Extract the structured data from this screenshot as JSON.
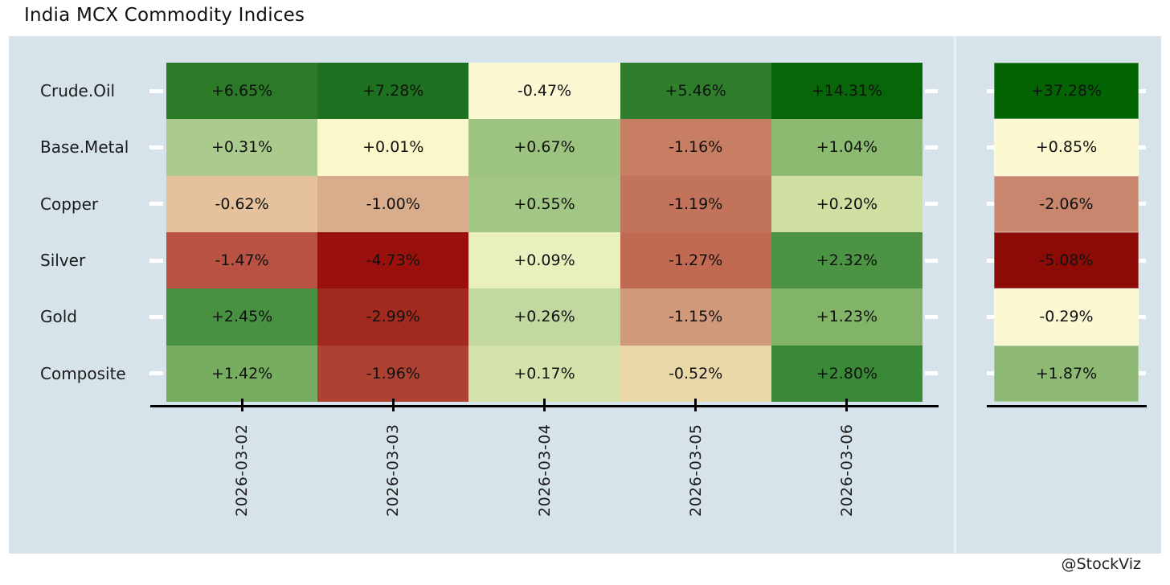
{
  "page": {
    "title": "India MCX Commodity Indices",
    "footer": "@StockViz",
    "colors": {
      "panel_bg": "#d6e3ea",
      "axis": "#000000",
      "axis_tick_marks": "#ffffff",
      "text": "#1a1a1a"
    }
  },
  "chart_data": {
    "type": "heatmap",
    "title": "India MCX Commodity Indices",
    "rows": [
      "Crude.Oil",
      "Base.Metal",
      "Copper",
      "Silver",
      "Gold",
      "Composite"
    ],
    "columns": [
      "2026-03-02",
      "2026-03-03",
      "2026-03-04",
      "2026-03-05",
      "2026-03-06"
    ],
    "values": [
      [
        6.65,
        7.28,
        -0.47,
        5.46,
        14.31
      ],
      [
        0.31,
        0.01,
        0.67,
        -1.16,
        1.04
      ],
      [
        -0.62,
        -1.0,
        0.55,
        -1.19,
        0.2
      ],
      [
        -1.47,
        -4.73,
        0.09,
        -1.27,
        2.32
      ],
      [
        2.45,
        -2.99,
        0.26,
        -1.15,
        1.23
      ],
      [
        1.42,
        -1.96,
        0.17,
        -0.52,
        2.8
      ]
    ],
    "labels": [
      [
        "+6.65%",
        "+7.28%",
        "-0.47%",
        "+5.46%",
        "+14.31%"
      ],
      [
        "+0.31%",
        "+0.01%",
        "+0.67%",
        "-1.16%",
        "+1.04%"
      ],
      [
        "-0.62%",
        "-1.00%",
        "+0.55%",
        "-1.19%",
        "+0.20%"
      ],
      [
        "-1.47%",
        "-4.73%",
        "+0.09%",
        "-1.27%",
        "+2.32%"
      ],
      [
        "+2.45%",
        "-2.99%",
        "+0.26%",
        "-1.15%",
        "+1.23%"
      ],
      [
        "+1.42%",
        "-1.96%",
        "+0.17%",
        "-0.52%",
        "+2.80%"
      ]
    ],
    "cell_colors": [
      [
        "#2a7a27",
        "#1d7120",
        "#fbf8d3",
        "#2f7e2c",
        "#076607"
      ],
      [
        "#abca8d",
        "#fbf7cb",
        "#9cc37f",
        "#c87e63",
        "#8cba71"
      ],
      [
        "#e5c29b",
        "#d9ac8c",
        "#a2c684",
        "#c1745b",
        "#cfdfa2"
      ],
      [
        "#b95243",
        "#9a100c",
        "#e9f0bd",
        "#bf6a51",
        "#4c9344"
      ],
      [
        "#489140",
        "#a32a1e",
        "#c1d8a1",
        "#d0997c",
        "#82b468"
      ],
      [
        "#76ad61",
        "#ae4232",
        "#d4e3ab",
        "#ebd8a9",
        "#398936"
      ]
    ],
    "totals": {
      "values": [
        37.28,
        0.85,
        -2.06,
        -5.08,
        -0.29,
        1.87
      ],
      "labels": [
        "+37.28%",
        "+0.85%",
        "-2.06%",
        "-5.08%",
        "-0.29%",
        "+1.87%"
      ],
      "colors": [
        "#026402",
        "#fcf8cf",
        "#c8866e",
        "#8d0b07",
        "#fbf8d2",
        "#8db975"
      ]
    },
    "palette": {
      "negative": "#8b0000",
      "neutral": "#fffde0",
      "positive": "#006400"
    },
    "layout_hints": {
      "x_labels_rotated_90": true,
      "totals_column_on_right": true,
      "grid": "off"
    }
  }
}
